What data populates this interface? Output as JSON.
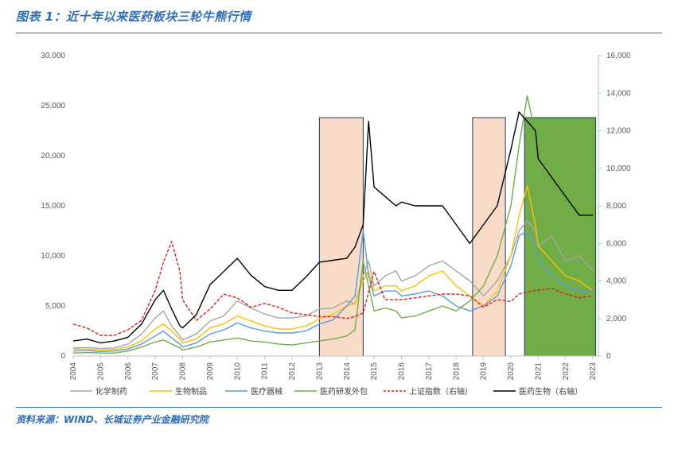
{
  "caption": "图表 1：近十年以来医药板块三轮牛熊行情",
  "source": "资料来源：WIND、长城证券产业金融研究院",
  "colors": {
    "chem": "#a6a6a6",
    "bio": "#ffc000",
    "device": "#5b9bd5",
    "cro": "#70ad47",
    "sh": "#e02020",
    "pharma": "#000000",
    "bull": "#f8dcc8",
    "bear": "#70ad47",
    "frame": "#2f6db5"
  },
  "chart_data": {
    "type": "line",
    "x": [
      2004,
      2004.5,
      2005,
      2005.5,
      2006,
      2006.5,
      2007,
      2007.3,
      2007.6,
      2007.9,
      2008,
      2008.5,
      2009,
      2009.5,
      2010,
      2010.5,
      2011,
      2011.5,
      2012,
      2012.5,
      2013,
      2013.5,
      2014,
      2014.3,
      2014.6,
      2014.8,
      2015,
      2015.4,
      2015.8,
      2016,
      2016.5,
      2017,
      2017.5,
      2018,
      2018.5,
      2019,
      2019.5,
      2020,
      2020.3,
      2020.6,
      2020.9,
      2021,
      2021.5,
      2022,
      2022.5,
      2023
    ],
    "x_ticks": [
      "2004",
      "2005",
      "2006",
      "2007",
      "2008",
      "2009",
      "2010",
      "2011",
      "2012",
      "2013",
      "2014",
      "2015",
      "2016",
      "2017",
      "2018",
      "2019",
      "2020",
      "2021",
      "2022",
      "2023"
    ],
    "y_left": {
      "min": 0,
      "max": 30000,
      "ticks": [
        "0",
        "5,000",
        "10,000",
        "15,000",
        "20,000",
        "25,000",
        "30,000"
      ]
    },
    "y_right": {
      "min": 0,
      "max": 16000,
      "ticks": [
        "0",
        "2,000",
        "4,000",
        "6,000",
        "8,000",
        "10,000",
        "12,000",
        "14,000",
        "16,000"
      ]
    },
    "series": [
      {
        "name": "化学制药",
        "axis": "left",
        "color_key": "chem",
        "dash": false,
        "values": [
          800,
          850,
          750,
          800,
          1200,
          2200,
          3800,
          4500,
          3000,
          2000,
          1600,
          2200,
          3500,
          4000,
          5500,
          4800,
          4200,
          3800,
          3800,
          4000,
          4700,
          4800,
          5500,
          5200,
          8000,
          9500,
          7000,
          8000,
          8500,
          7500,
          8000,
          9000,
          9500,
          8500,
          7500,
          6000,
          7500,
          10000,
          12500,
          13500,
          12500,
          11000,
          12000,
          9500,
          10000,
          8500
        ]
      },
      {
        "name": "生物制品",
        "axis": "left",
        "color_key": "bio",
        "dash": false,
        "values": [
          700,
          700,
          600,
          650,
          900,
          1500,
          2700,
          3200,
          2500,
          1700,
          1300,
          1700,
          2800,
          3200,
          4000,
          3500,
          3000,
          2700,
          2700,
          3000,
          3700,
          4200,
          5000,
          5200,
          7500,
          8500,
          6500,
          7000,
          7000,
          6500,
          7000,
          8000,
          8500,
          7000,
          6000,
          5000,
          6500,
          10000,
          14000,
          17000,
          13000,
          11000,
          9500,
          8000,
          7500,
          6500
        ]
      },
      {
        "name": "医疗器械",
        "axis": "left",
        "color_key": "device",
        "dash": false,
        "values": [
          500,
          550,
          450,
          500,
          700,
          1200,
          2000,
          2500,
          1800,
          1200,
          900,
          1300,
          2200,
          2600,
          3300,
          2800,
          2500,
          2300,
          2300,
          2500,
          3200,
          3600,
          5000,
          6000,
          12500,
          8000,
          6000,
          6500,
          6500,
          6000,
          6200,
          6500,
          6000,
          5000,
          4500,
          5000,
          6000,
          9000,
          12000,
          12500,
          11000,
          9500,
          8000,
          7000,
          6500,
          6500
        ]
      },
      {
        "name": "医药研发外包",
        "axis": "left",
        "color_key": "cro",
        "dash": false,
        "values": [
          300,
          350,
          300,
          300,
          500,
          900,
          1400,
          1600,
          1200,
          800,
          600,
          900,
          1400,
          1600,
          1800,
          1500,
          1400,
          1200,
          1100,
          1300,
          1500,
          1700,
          2000,
          2600,
          9500,
          7000,
          4500,
          4800,
          4500,
          3800,
          4000,
          4500,
          5000,
          4500,
          5500,
          7000,
          10000,
          15000,
          21000,
          26000,
          22000,
          18000,
          15000,
          12000,
          13000,
          11000
        ]
      },
      {
        "name": "上证指数（右轴）",
        "axis": "right",
        "color_key": "sh",
        "dash": true,
        "values": [
          1700,
          1500,
          1100,
          1100,
          1400,
          1900,
          3500,
          5000,
          6100,
          4500,
          3000,
          1900,
          2500,
          3300,
          3100,
          2600,
          2800,
          2600,
          2300,
          2200,
          2100,
          2100,
          2000,
          2100,
          2300,
          3400,
          4500,
          3000,
          3000,
          3000,
          3100,
          3200,
          3300,
          3300,
          3200,
          2600,
          3000,
          2900,
          3300,
          3400,
          3500,
          3500,
          3600,
          3300,
          3100,
          3200
        ]
      },
      {
        "name": "医药生物（右轴）",
        "axis": "right",
        "color_key": "pharma",
        "dash": false,
        "values": [
          800,
          900,
          700,
          800,
          1000,
          1700,
          3000,
          3500,
          2500,
          1600,
          1500,
          2200,
          3800,
          4500,
          5200,
          4300,
          3700,
          3500,
          3500,
          4200,
          5000,
          5100,
          5200,
          5800,
          7000,
          12500,
          9000,
          8500,
          8000,
          8200,
          8000,
          8000,
          8000,
          7000,
          6000,
          7000,
          8000,
          11000,
          13000,
          12500,
          12000,
          10500,
          9500,
          8500,
          7500,
          7500
        ]
      }
    ],
    "shaded_regions": [
      {
        "from": 2013,
        "to": 2014.6,
        "color_key": "bull"
      },
      {
        "from": 2018.6,
        "to": 2019.8,
        "color_key": "bull"
      },
      {
        "from": 2020.5,
        "to": 2023.1,
        "color_key": "bear"
      }
    ]
  }
}
